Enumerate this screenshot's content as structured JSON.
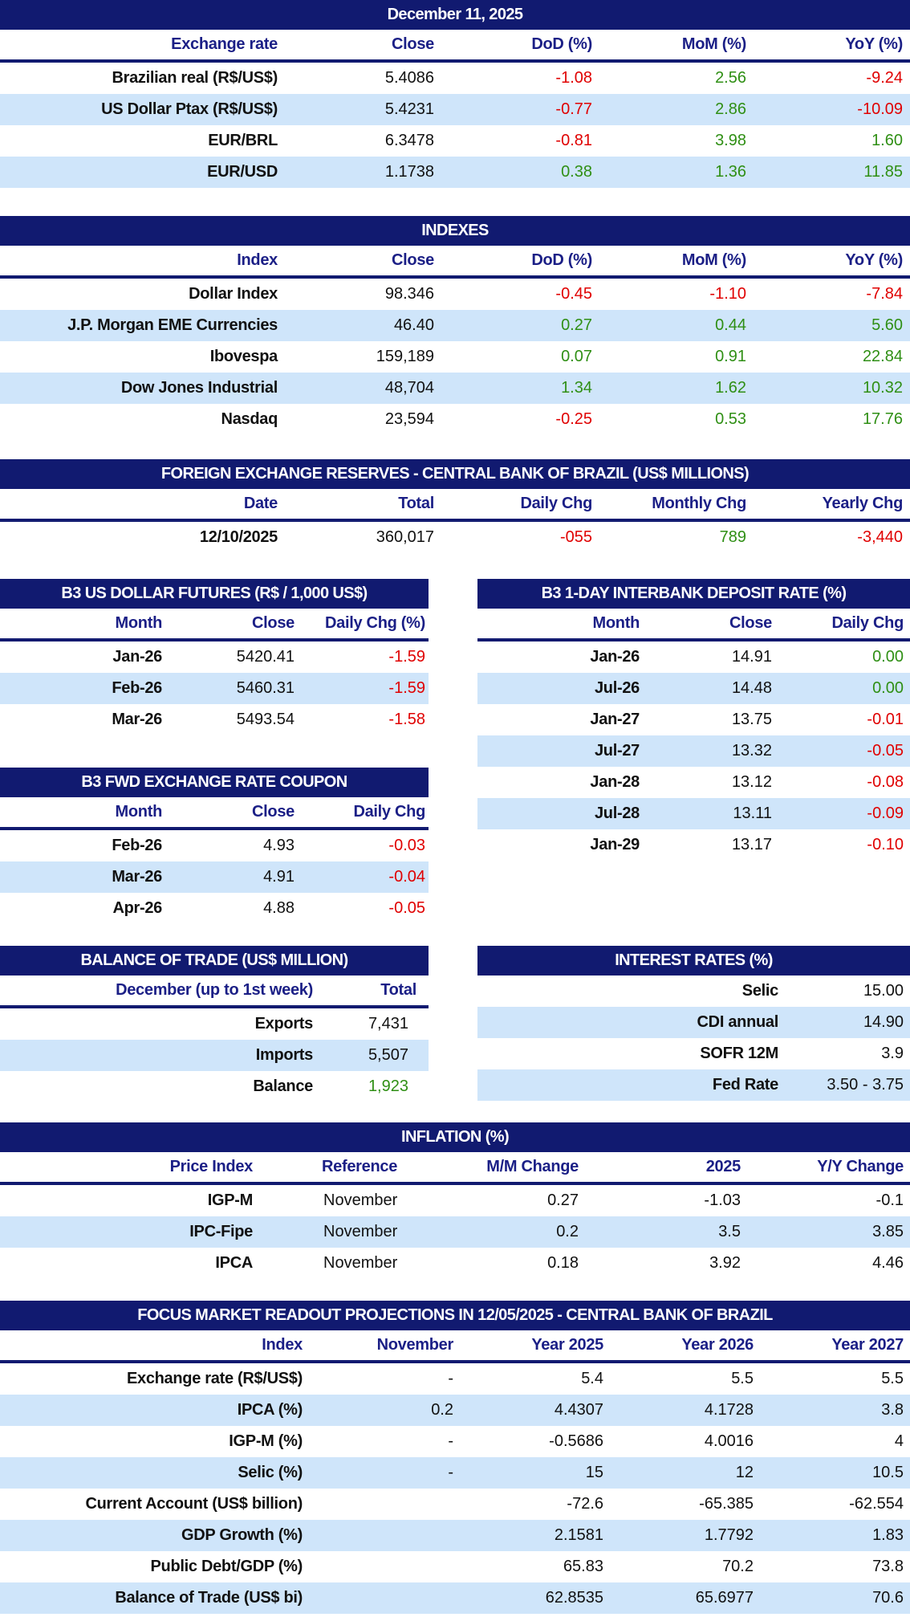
{
  "colors": {
    "title_bg": "#111a70",
    "header_text": "#1b1f86",
    "row_alt": "#cfe5fa",
    "negative": "#e00000",
    "positive": "#2f8f14"
  },
  "tables": [
    {
      "title": "December 11, 2025",
      "headers": [
        "Exchange rate",
        "Close",
        "DoD (%)",
        "MoM (%)",
        "YoY (%)"
      ],
      "rows": [
        [
          "Brazilian real (R$/US$)",
          "5.4086",
          "-1.08",
          "2.56",
          "-9.24"
        ],
        [
          "US Dollar Ptax (R$/US$)",
          "5.4231",
          "-0.77",
          "2.86",
          "-10.09"
        ],
        [
          "EUR/BRL",
          "6.3478",
          "-0.81",
          "3.98",
          "1.60"
        ],
        [
          "EUR/USD",
          "1.1738",
          "0.38",
          "1.36",
          "11.85"
        ]
      ]
    },
    {
      "title": "INDEXES",
      "headers": [
        "Index",
        "Close",
        "DoD (%)",
        "MoM (%)",
        "YoY (%)"
      ],
      "rows": [
        [
          "Dollar Index",
          "98.346",
          "-0.45",
          "-1.10",
          "-7.84"
        ],
        [
          "J.P. Morgan EME Currencies",
          "46.40",
          "0.27",
          "0.44",
          "5.60"
        ],
        [
          "Ibovespa",
          "159,189",
          "0.07",
          "0.91",
          "22.84"
        ],
        [
          "Dow Jones Industrial",
          "48,704",
          "1.34",
          "1.62",
          "10.32"
        ],
        [
          "Nasdaq",
          "23,594",
          "-0.25",
          "0.53",
          "17.76"
        ]
      ]
    },
    {
      "title": "FOREIGN EXCHANGE RESERVES - CENTRAL BANK OF BRAZIL (US$ MILLIONS)",
      "headers": [
        "Date",
        "Total",
        "Daily Chg",
        "Monthly Chg",
        "Yearly Chg"
      ],
      "rows": [
        [
          "12/10/2025",
          "360,017",
          "-055",
          "789",
          "-3,440"
        ]
      ]
    },
    {
      "title": "B3 US DOLLAR FUTURES (R$ / 1,000 US$)",
      "headers": [
        "Month",
        "Close",
        "Daily Chg (%)"
      ],
      "rows": [
        [
          "Jan-26",
          "5420.41",
          "-1.59"
        ],
        [
          "Feb-26",
          "5460.31",
          "-1.59"
        ],
        [
          "Mar-26",
          "5493.54",
          "-1.58"
        ]
      ]
    },
    {
      "title": "B3 1-DAY INTERBANK DEPOSIT RATE (%)",
      "headers": [
        "Month",
        "Close",
        "Daily Chg"
      ],
      "rows": [
        [
          "Jan-26",
          "14.91",
          "0.00"
        ],
        [
          "Jul-26",
          "14.48",
          "0.00"
        ],
        [
          "Jan-27",
          "13.75",
          "-0.01"
        ],
        [
          "Jul-27",
          "13.32",
          "-0.05"
        ],
        [
          "Jan-28",
          "13.12",
          "-0.08"
        ],
        [
          "Jul-28",
          "13.11",
          "-0.09"
        ],
        [
          "Jan-29",
          "13.17",
          "-0.10"
        ]
      ]
    },
    {
      "title": "B3 FWD EXCHANGE RATE COUPON",
      "headers": [
        "Month",
        "Close",
        "Daily Chg"
      ],
      "rows": [
        [
          "Feb-26",
          "4.93",
          "-0.03"
        ],
        [
          "Mar-26",
          "4.91",
          "-0.04"
        ],
        [
          "Apr-26",
          "4.88",
          "-0.05"
        ]
      ]
    },
    {
      "title": "BALANCE OF TRADE (US$ MILLION)",
      "headers": [
        "December (up to 1st week)",
        "Total"
      ],
      "rows": [
        [
          "Exports",
          "7,431"
        ],
        [
          "Imports",
          "5,507"
        ],
        [
          "Balance",
          "1,923"
        ]
      ]
    },
    {
      "title": "INTEREST RATES (%)",
      "headers": [],
      "rows": [
        [
          "Selic",
          "15.00"
        ],
        [
          "CDI annual",
          "14.90"
        ],
        [
          "SOFR 12M",
          "3.9"
        ],
        [
          "Fed Rate",
          "3.50 - 3.75"
        ]
      ]
    },
    {
      "title": "INFLATION (%)",
      "headers": [
        "Price Index",
        "Reference",
        "M/M Change",
        "2025",
        "Y/Y Change"
      ],
      "rows": [
        [
          "IGP-M",
          "November",
          "0.27",
          "-1.03",
          "-0.1"
        ],
        [
          "IPC-Fipe",
          "November",
          "0.2",
          "3.5",
          "3.85"
        ],
        [
          "IPCA",
          "November",
          "0.18",
          "3.92",
          "4.46"
        ]
      ]
    },
    {
      "title": "FOCUS MARKET READOUT PROJECTIONS IN 12/05/2025 - CENTRAL BANK OF BRAZIL",
      "headers": [
        "Index",
        "November",
        "Year 2025",
        "Year 2026",
        "Year 2027"
      ],
      "rows": [
        [
          "Exchange rate (R$/US$)",
          "-",
          "5.4",
          "5.5",
          "5.5"
        ],
        [
          "IPCA (%)",
          "0.2",
          "4.4307",
          "4.1728",
          "3.8"
        ],
        [
          "IGP-M (%)",
          "-",
          "-0.5686",
          "4.0016",
          "4"
        ],
        [
          "Selic (%)",
          "-",
          "15",
          "12",
          "10.5"
        ],
        [
          "Current Account (US$ billion)",
          "",
          "-72.6",
          "-65.385",
          "-62.554"
        ],
        [
          "GDP Growth (%)",
          "",
          "2.1581",
          "1.7792",
          "1.83"
        ],
        [
          "Public Debt/GDP (%)",
          "",
          "65.83",
          "70.2",
          "73.8"
        ],
        [
          "Balance of Trade (US$ bi)",
          "",
          "62.8535",
          "65.6977",
          "70.6"
        ]
      ]
    }
  ]
}
